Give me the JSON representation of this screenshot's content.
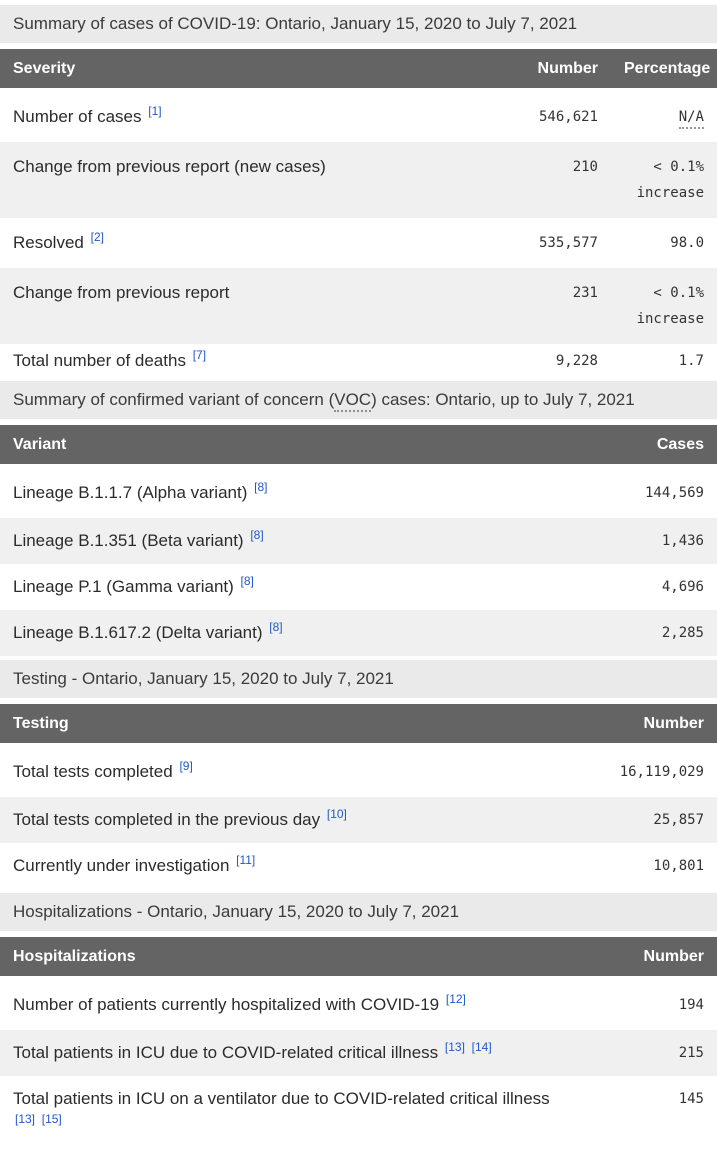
{
  "theme": {
    "header_bg": "#646464",
    "header_text": "#ffffff",
    "caption_bg": "#eaeaea",
    "row_alt_bg": "#f0f0f0",
    "footnote_link_color": "#2058c8",
    "body_text_color": "#2b2b2b",
    "number_text_color": "#333333"
  },
  "tables": [
    {
      "caption": "Summary of cases of COVID-19: Ontario, January 15, 2020 to July 7, 2021",
      "columns": [
        "Severity",
        "Number",
        "Percentage"
      ],
      "rows": [
        {
          "label": "Number of cases",
          "footnotes": [
            "[1]"
          ],
          "values": [
            "546,621",
            "N/A"
          ]
        },
        {
          "label": "Change from previous report (new cases)",
          "footnotes": [],
          "values": [
            "210",
            "< 0.1% increase"
          ]
        },
        {
          "label": "Resolved",
          "footnotes": [
            "[2]"
          ],
          "values": [
            "535,577",
            "98.0"
          ]
        },
        {
          "label": "Change from previous report",
          "footnotes": [],
          "values": [
            "231",
            "< 0.1% increase"
          ]
        },
        {
          "label": "Total number of deaths",
          "footnotes": [
            "[7]"
          ],
          "values": [
            "9,228",
            "1.7"
          ]
        }
      ]
    },
    {
      "caption_pre": "Summary of confirmed variant of concern (",
      "caption_abbr": "VOC",
      "caption_post": ") cases: Ontario, up to July 7, 2021",
      "columns": [
        "Variant",
        "Cases"
      ],
      "rows": [
        {
          "label": "Lineage B.1.1.7 (Alpha variant)",
          "footnotes": [
            "[8]"
          ],
          "values": [
            "144,569"
          ]
        },
        {
          "label": "Lineage B.1.351 (Beta variant)",
          "footnotes": [
            "[8]"
          ],
          "values": [
            "1,436"
          ]
        },
        {
          "label": "Lineage P.1 (Gamma variant)",
          "footnotes": [
            "[8]"
          ],
          "values": [
            "4,696"
          ]
        },
        {
          "label": "Lineage B.1.617.2 (Delta variant)",
          "footnotes": [
            "[8]"
          ],
          "values": [
            "2,285"
          ]
        }
      ]
    },
    {
      "caption": "Testing - Ontario, January 15, 2020 to July 7, 2021",
      "columns": [
        "Testing",
        "Number"
      ],
      "rows": [
        {
          "label": "Total tests completed",
          "footnotes": [
            "[9]"
          ],
          "values": [
            "16,119,029"
          ]
        },
        {
          "label": "Total tests completed in the previous day",
          "footnotes": [
            "[10]"
          ],
          "values": [
            "25,857"
          ]
        },
        {
          "label": "Currently under investigation",
          "footnotes": [
            "[11]"
          ],
          "values": [
            "10,801"
          ]
        }
      ]
    },
    {
      "caption": "Hospitalizations - Ontario, January 15, 2020 to July 7, 2021",
      "columns": [
        "Hospitalizations",
        "Number"
      ],
      "rows": [
        {
          "label": "Number of patients currently hospitalized with COVID-19",
          "footnotes": [
            "[12]"
          ],
          "values": [
            "194"
          ]
        },
        {
          "label": "Total patients in ICU due to COVID-related critical illness",
          "footnotes": [
            "[13]",
            "[14]"
          ],
          "values": [
            "215"
          ]
        },
        {
          "label": "Total patients in ICU on a ventilator due to COVID-related critical illness",
          "footnotes": [
            "[13]",
            "[15]"
          ],
          "values": [
            "145"
          ]
        }
      ]
    }
  ]
}
